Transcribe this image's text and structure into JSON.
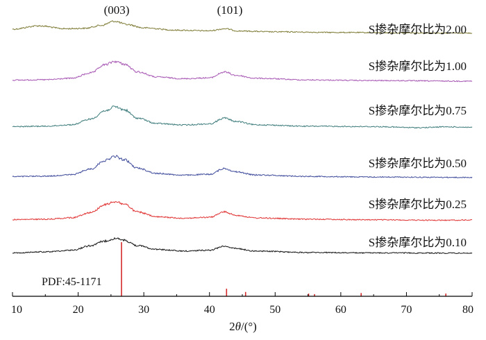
{
  "chart_data": {
    "type": "line",
    "xlabel_parts": {
      "pre": "2",
      "theta": "θ",
      "post": "/(°)"
    },
    "xlim": [
      10,
      80
    ],
    "x_ticks": [
      10,
      20,
      30,
      40,
      50,
      60,
      70,
      80
    ],
    "x_tick_labels": [
      "10",
      "20",
      "30",
      "40",
      "50",
      "60",
      "70",
      "80"
    ],
    "grid": false,
    "legend": "labels placed at right end of each curve",
    "annotations": [
      {
        "text": "(003)",
        "x": 25.8
      },
      {
        "text": "(101)",
        "x": 42.5
      }
    ],
    "series": [
      {
        "name": "S掺杂摩尔比为2.00",
        "color": "#7d7a34",
        "points": [
          [
            10,
            0.2
          ],
          [
            14,
            0.36
          ],
          [
            18,
            0.22
          ],
          [
            21,
            0.24
          ],
          [
            23.5,
            0.38
          ],
          [
            25.5,
            0.58
          ],
          [
            27.5,
            0.42
          ],
          [
            30,
            0.26
          ],
          [
            35,
            0.15
          ],
          [
            40,
            0.12
          ],
          [
            42.3,
            0.22
          ],
          [
            44.5,
            0.11
          ],
          [
            50,
            0.07
          ],
          [
            60,
            0.04
          ],
          [
            70,
            0.02
          ],
          [
            80,
            0.01
          ]
        ]
      },
      {
        "name": "S掺杂摩尔比为1.00",
        "color": "#a655b3",
        "points": [
          [
            10,
            0.05
          ],
          [
            15,
            0.07
          ],
          [
            19,
            0.14
          ],
          [
            22,
            0.4
          ],
          [
            24,
            0.78
          ],
          [
            25.6,
            0.95
          ],
          [
            27,
            0.82
          ],
          [
            29,
            0.45
          ],
          [
            32,
            0.2
          ],
          [
            36,
            0.12
          ],
          [
            40,
            0.16
          ],
          [
            42.3,
            0.44
          ],
          [
            44,
            0.28
          ],
          [
            47,
            0.14
          ],
          [
            55,
            0.06
          ],
          [
            65,
            0.03
          ],
          [
            80,
            0.0
          ]
        ]
      },
      {
        "name": "S掺杂摩尔比为0.75",
        "color": "#3d7b7b",
        "points": [
          [
            10,
            0.05
          ],
          [
            15,
            0.07
          ],
          [
            19,
            0.14
          ],
          [
            22,
            0.42
          ],
          [
            24,
            0.8
          ],
          [
            25.6,
            1.0
          ],
          [
            27,
            0.86
          ],
          [
            29,
            0.46
          ],
          [
            32,
            0.2
          ],
          [
            36,
            0.13
          ],
          [
            40,
            0.18
          ],
          [
            42.3,
            0.46
          ],
          [
            44,
            0.3
          ],
          [
            47,
            0.14
          ],
          [
            55,
            0.07
          ],
          [
            65,
            0.05
          ],
          [
            72,
            0.0
          ],
          [
            76,
            0.04
          ],
          [
            80,
            0.02
          ]
        ]
      },
      {
        "name": "S掺杂摩尔比为0.50",
        "color": "#3d4a9a",
        "points": [
          [
            10,
            0.05
          ],
          [
            15,
            0.07
          ],
          [
            19,
            0.14
          ],
          [
            22,
            0.42
          ],
          [
            24,
            0.82
          ],
          [
            25.6,
            1.02
          ],
          [
            27,
            0.86
          ],
          [
            29,
            0.46
          ],
          [
            32,
            0.2
          ],
          [
            36,
            0.12
          ],
          [
            40,
            0.16
          ],
          [
            42.3,
            0.44
          ],
          [
            44,
            0.28
          ],
          [
            47,
            0.13
          ],
          [
            55,
            0.06
          ],
          [
            65,
            0.03
          ],
          [
            80,
            0.01
          ]
        ]
      },
      {
        "name": "S掺杂摩尔比为0.25",
        "color": "#e03030",
        "points": [
          [
            10,
            0.05
          ],
          [
            15,
            0.07
          ],
          [
            19,
            0.14
          ],
          [
            22,
            0.4
          ],
          [
            24,
            0.76
          ],
          [
            25.6,
            0.92
          ],
          [
            27,
            0.8
          ],
          [
            29,
            0.42
          ],
          [
            32,
            0.18
          ],
          [
            36,
            0.12
          ],
          [
            40,
            0.16
          ],
          [
            42.3,
            0.42
          ],
          [
            44,
            0.26
          ],
          [
            47,
            0.13
          ],
          [
            55,
            0.07
          ],
          [
            65,
            0.04
          ],
          [
            75,
            0.02
          ],
          [
            80,
            0.03
          ]
        ]
      },
      {
        "name": "S掺杂摩尔比为0.10",
        "color": "#111111",
        "points": [
          [
            10,
            0.05
          ],
          [
            15,
            0.1
          ],
          [
            19,
            0.18
          ],
          [
            22,
            0.4
          ],
          [
            24,
            0.62
          ],
          [
            25.6,
            0.74
          ],
          [
            27,
            0.66
          ],
          [
            29,
            0.4
          ],
          [
            32,
            0.22
          ],
          [
            36,
            0.14
          ],
          [
            40,
            0.18
          ],
          [
            42.3,
            0.38
          ],
          [
            44,
            0.26
          ],
          [
            47,
            0.14
          ],
          [
            55,
            0.07
          ],
          [
            65,
            0.05
          ],
          [
            80,
            0.04
          ]
        ]
      }
    ],
    "reference": {
      "label": "PDF:45-1171",
      "color": "#d42a2a",
      "peaks": [
        {
          "x": 26.6,
          "intensity": 100
        },
        {
          "x": 42.6,
          "intensity": 14
        },
        {
          "x": 45.5,
          "intensity": 8
        },
        {
          "x": 55.1,
          "intensity": 5
        },
        {
          "x": 56.0,
          "intensity": 4
        },
        {
          "x": 63.1,
          "intensity": 6
        },
        {
          "x": 76.0,
          "intensity": 5
        }
      ]
    }
  }
}
